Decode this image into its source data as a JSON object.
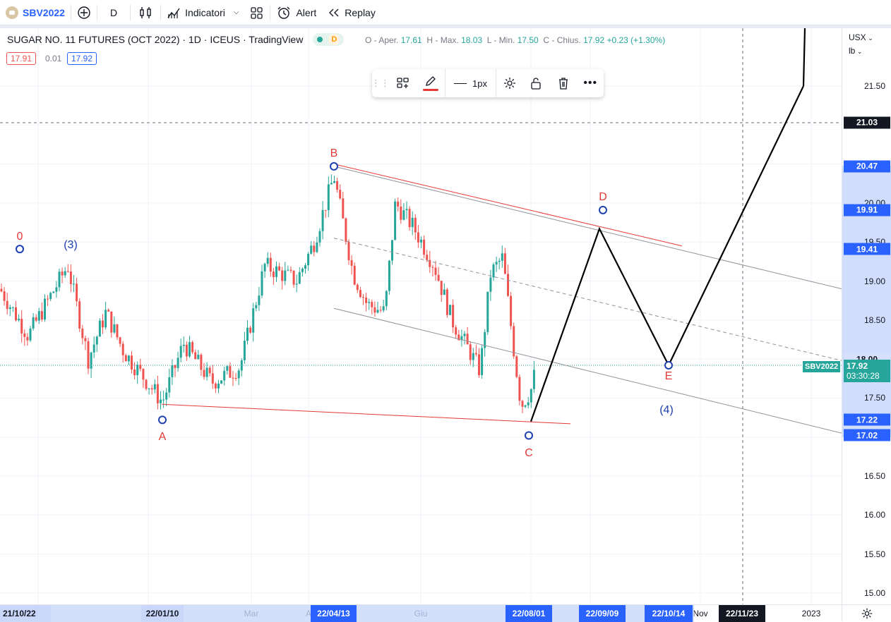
{
  "toolbar": {
    "symbol": "SBV2022",
    "interval": "D",
    "indicators_label": "Indicatori",
    "alert_label": "Alert",
    "replay_label": "Replay"
  },
  "legend": {
    "title": "SUGAR NO. 11 FUTURES (OCT 2022) · 1D · ICEUS · TradingView",
    "badge": "D",
    "open_label": "O - Aper.",
    "open": "17.61",
    "high_label": "H - Max.",
    "high": "18.03",
    "low_label": "L - Min.",
    "low": "17.50",
    "close_label": "C - Chius.",
    "close": "17.92",
    "change": "+0.23 (+1.30%)",
    "bid": "17.91",
    "spread": "0.01",
    "ask": "17.92"
  },
  "drawing_toolbar": {
    "width_label": "1px"
  },
  "colors": {
    "up": "#26a69a",
    "down": "#ef5350",
    "wave_red": "#e53935",
    "wave_blue": "#1e40af",
    "accent": "#2962ff"
  },
  "right_axis": {
    "currency": "USX",
    "unit": "lb",
    "ticks": [
      "21.50",
      "20.00",
      "19.50",
      "19.00",
      "18.50",
      "17.50",
      "16.50",
      "16.00",
      "15.50",
      "15.00"
    ],
    "badges": [
      {
        "value": "21.03",
        "style": "dark"
      },
      {
        "value": "20.47",
        "style": "blue"
      },
      {
        "value": "19.91",
        "style": "blue"
      },
      {
        "value": "19.41",
        "style": "blue"
      },
      {
        "value": "18.00",
        "style": "light"
      },
      {
        "value": "17.22",
        "style": "blue"
      },
      {
        "value": "17.02",
        "style": "blue"
      }
    ],
    "last_price": "17.92",
    "countdown": "03:30:28",
    "symbol_tag": "SBV2022"
  },
  "bottom_axis": {
    "labels": [
      "Mar",
      "A",
      "Giu",
      "Nov",
      "2023"
    ],
    "badges": [
      "21/10/22",
      "22/01/10",
      "22/04/13",
      "22/08/01",
      "22/09/09",
      "22/10/14",
      "22/11/23"
    ]
  },
  "wave_labels": {
    "zero": "0",
    "three": "(3)",
    "four": "(4)",
    "a": "A",
    "b": "B",
    "c": "C",
    "d": "D",
    "e": "E"
  }
}
